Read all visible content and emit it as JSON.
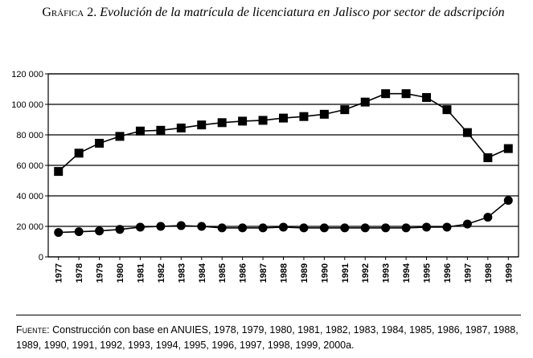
{
  "chart_data": {
    "type": "line",
    "figure_label": "Gráfica 2.",
    "title": "Evolución de la matrícula de licenciatura en Jalisco por sector de adscripción",
    "source_label": "Fuente:",
    "source": "Construcción con base en ANUIES, 1978, 1979, 1980, 1981, 1982, 1983, 1984, 1985, 1986, 1987, 1988, 1989, 1990, 1991, 1992, 1993, 1994, 1995, 1996, 1997, 1998, 1999, 2000a.",
    "categories": [
      "1977",
      "1978",
      "1979",
      "1980",
      "1981",
      "1982",
      "1983",
      "1984",
      "1985",
      "1986",
      "1987",
      "1988",
      "1989",
      "1990",
      "1991",
      "1992",
      "1993",
      "1994",
      "1995",
      "1996",
      "1997",
      "1998",
      "1999"
    ],
    "series": [
      {
        "color": "#000000",
        "marker": "square",
        "values": [
          56000,
          68000,
          74500,
          79000,
          82500,
          83000,
          84500,
          86500,
          88000,
          89000,
          89500,
          91000,
          92000,
          93500,
          96500,
          101500,
          107000,
          107000,
          104500,
          96500,
          81500,
          65000,
          71000
        ]
      },
      {
        "color": "#000000",
        "marker": "circle",
        "values": [
          16000,
          16500,
          17000,
          18000,
          19500,
          20000,
          20500,
          20000,
          19000,
          19000,
          19000,
          19500,
          19000,
          19000,
          19000,
          19000,
          19000,
          19000,
          19500,
          19500,
          21500,
          26000,
          37000
        ]
      }
    ],
    "ylim": [
      0,
      120000
    ],
    "yticks": [
      0,
      {
        "value": 20000,
        "label": "20 000"
      },
      {
        "value": 40000,
        "label": "40 000"
      },
      {
        "value": 60000,
        "label": "60 000"
      },
      {
        "value": 80000,
        "label": "80 000"
      },
      {
        "value": 100000,
        "label": "100 000"
      },
      {
        "value": 120000,
        "label": "120 000"
      }
    ],
    "grid": true
  }
}
